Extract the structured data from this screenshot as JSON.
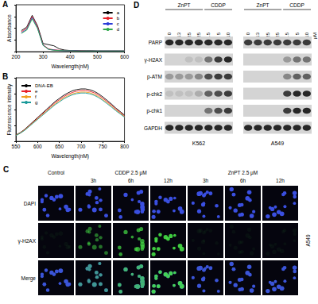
{
  "chart_data": [
    {
      "panel": "A",
      "type": "line",
      "xlabel": "Wavelength(nM)",
      "ylabel": "Absorbance",
      "x": [
        220,
        240,
        260,
        280,
        300,
        320,
        340,
        360,
        380,
        400,
        420,
        440,
        460,
        480,
        500,
        520,
        540,
        560,
        580,
        600
      ],
      "series": [
        {
          "name": "a",
          "color": "#000000",
          "values": [
            0.9,
            1.05,
            1.55,
            1.1,
            0.35,
            0.3,
            0.25,
            0.12,
            0.07,
            0.05,
            0.05,
            0.04,
            0.04,
            0.04,
            0.03,
            0.03,
            0.03,
            0.03,
            0.03,
            0.03
          ]
        },
        {
          "name": "b",
          "color": "#e8202a",
          "values": [
            0.85,
            1.0,
            1.5,
            1.05,
            0.3,
            0.12,
            0.08,
            0.06,
            0.05,
            0.04,
            0.04,
            0.04,
            0.03,
            0.03,
            0.03,
            0.03,
            0.03,
            0.03,
            0.03,
            0.03
          ]
        },
        {
          "name": "c",
          "color": "#2a3cd8",
          "values": [
            0.8,
            0.95,
            1.45,
            1.0,
            0.28,
            0.1,
            0.07,
            0.05,
            0.04,
            0.04,
            0.04,
            0.03,
            0.03,
            0.03,
            0.03,
            0.03,
            0.03,
            0.03,
            0.03,
            0.03
          ]
        },
        {
          "name": "d",
          "color": "#2ea84a",
          "values": [
            0.78,
            0.92,
            1.4,
            0.98,
            0.27,
            0.1,
            0.06,
            0.05,
            0.04,
            0.04,
            0.03,
            0.03,
            0.03,
            0.03,
            0.03,
            0.03,
            0.03,
            0.03,
            0.03,
            0.03
          ]
        }
      ],
      "xlim": [
        200,
        600
      ],
      "xticks": [
        200,
        300,
        400,
        500,
        600
      ],
      "ylim": [
        0,
        2
      ],
      "yticks": [
        0,
        0.5,
        1,
        1.5,
        2
      ],
      "tick_labels": "x",
      "grid": false,
      "legend": "top-right"
    },
    {
      "panel": "B",
      "type": "line",
      "xlabel": "Wavelength(nM)",
      "ylabel": "Fluorescence intensity",
      "x": [
        550,
        560,
        570,
        580,
        590,
        600,
        610,
        620,
        630,
        640,
        650,
        660,
        670,
        680,
        690,
        700,
        710,
        720,
        730,
        740,
        750,
        760,
        770,
        780,
        790,
        800
      ],
      "series": [
        {
          "name": "DNA-EB",
          "color": "#000000",
          "values": [
            40,
            55,
            75,
            100,
            125,
            150,
            175,
            200,
            225,
            250,
            270,
            290,
            305,
            318,
            326,
            330,
            330,
            325,
            315,
            300,
            280,
            258,
            235,
            210,
            188,
            165
          ]
        },
        {
          "name": "e",
          "color": "#e8202a",
          "values": [
            39,
            53,
            73,
            97,
            121,
            146,
            170,
            194,
            218,
            243,
            262,
            281,
            296,
            308,
            316,
            320,
            320,
            315,
            306,
            291,
            272,
            250,
            228,
            204,
            182,
            160
          ]
        },
        {
          "name": "f",
          "color": "#f0a020",
          "values": [
            38,
            52,
            71,
            94,
            118,
            141,
            165,
            188,
            212,
            235,
            254,
            273,
            287,
            299,
            306,
            310,
            310,
            306,
            296,
            282,
            263,
            243,
            221,
            197,
            177,
            155
          ]
        },
        {
          "name": "g",
          "color": "#1a9a9a",
          "values": [
            37,
            51,
            69,
            92,
            115,
            138,
            161,
            184,
            207,
            230,
            248,
            267,
            281,
            293,
            300,
            304,
            304,
            299,
            290,
            276,
            258,
            237,
            216,
            193,
            173,
            152
          ]
        }
      ],
      "xlim": [
        550,
        800
      ],
      "xticks": [
        550,
        600,
        650,
        700,
        750,
        800
      ],
      "ylim": [
        0,
        400
      ],
      "yticks": [
        0,
        100,
        200,
        300,
        400
      ],
      "tick_labels": "x",
      "grid": false,
      "legend": "top-left"
    }
  ],
  "panel_C": {
    "letter": "C",
    "groups": [
      {
        "label": "Control",
        "times": [
          null
        ]
      },
      {
        "label": "CDDP 2.5 μM",
        "times": [
          "3h",
          "6h",
          "12h"
        ]
      },
      {
        "label": "ZnPT 2.5 μM",
        "times": [
          "3h",
          "6h",
          "12h"
        ]
      }
    ],
    "rows": [
      "DAPI",
      "γ-H2AX",
      "Merge"
    ],
    "cell_line": "A549",
    "gamma_h2ax_signal": [
      0.05,
      0.5,
      0.7,
      0.9,
      0.05,
      0.05,
      0.05
    ]
  },
  "panel_D": {
    "letter": "D",
    "groups": [
      {
        "label": "ZnPT",
        "concentrations": [
          0,
          0.313,
          0.625,
          1.25
        ]
      },
      {
        "label": "CDDP",
        "concentrations": [
          2.5,
          5,
          10
        ]
      }
    ],
    "unit": "μM",
    "proteins": [
      "PARP",
      "γ-H2AX",
      "p-ATM",
      "p-chk2",
      "p-chk1",
      "GAPDH"
    ],
    "blots": [
      {
        "cell_line": "K562",
        "bands": [
          [
            0.9,
            0.9,
            0.9,
            0.9,
            0.9,
            0.9,
            0.9
          ],
          [
            0,
            0,
            0.1,
            0.1,
            0.5,
            0.8,
            0.9
          ],
          [
            0.3,
            0.3,
            0.3,
            0.4,
            0.7,
            0.8,
            0.8
          ],
          [
            0.1,
            0.1,
            0.1,
            0.2,
            0.6,
            0.7,
            0.8
          ],
          [
            0,
            0,
            0,
            0,
            0.5,
            0.7,
            0.8
          ],
          [
            0.9,
            0.9,
            0.9,
            0.9,
            0.9,
            0.9,
            0.9
          ]
        ]
      },
      {
        "cell_line": "A549",
        "bands": [
          [
            0.8,
            0.8,
            0.8,
            0.8,
            0.8,
            0.8,
            0.8
          ],
          [
            0,
            0,
            0,
            0,
            0.3,
            0.5,
            0.5
          ],
          [
            0,
            0,
            0,
            0,
            0.4,
            0.6,
            0.6
          ],
          [
            0,
            0,
            0,
            0,
            0.8,
            0.9,
            0.9
          ],
          [
            0,
            0,
            0,
            0,
            0.8,
            0.9,
            0.9
          ],
          [
            0.9,
            0.9,
            0.9,
            0.9,
            0.9,
            0.9,
            0.9
          ]
        ]
      }
    ]
  }
}
